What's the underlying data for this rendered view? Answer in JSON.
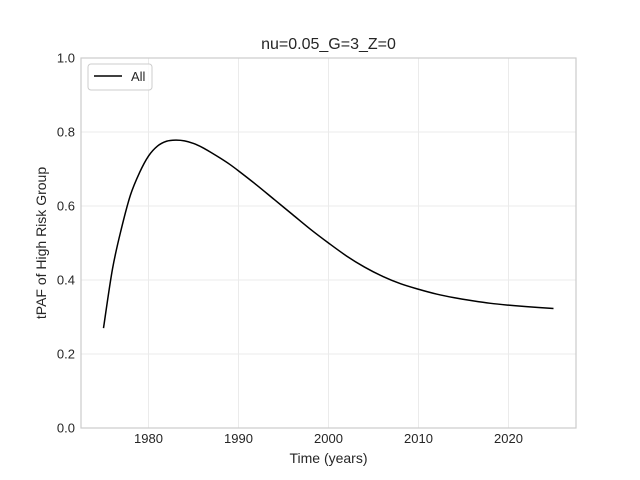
{
  "chart_data": {
    "type": "line",
    "title": "nu=0.05_G=3_Z=0",
    "xlabel": "Time (years)",
    "ylabel": "tPAF of High Risk Group",
    "xlim": [
      1972.5,
      2027.5
    ],
    "ylim": [
      0.0,
      1.0
    ],
    "xticks": [
      1980,
      1990,
      2000,
      2010,
      2020
    ],
    "xtick_labels": [
      "1980",
      "1990",
      "2000",
      "2010",
      "2020"
    ],
    "yticks": [
      0.0,
      0.2,
      0.4,
      0.6,
      0.8,
      1.0
    ],
    "ytick_labels": [
      "0.0",
      "0.2",
      "0.4",
      "0.6",
      "0.8",
      "1.0"
    ],
    "grid": true,
    "legend_position": "top-left",
    "series": [
      {
        "name": "All",
        "color": "#000000",
        "x": [
          1975,
          1976,
          1977,
          1978,
          1979,
          1980,
          1981,
          1982,
          1983,
          1984,
          1985,
          1986,
          1987,
          1988,
          1989,
          1990,
          1992,
          1994,
          1996,
          1998,
          2000,
          2002,
          2004,
          2006,
          2008,
          2010,
          2012,
          2014,
          2016,
          2018,
          2020,
          2022,
          2025
        ],
        "y": [
          0.27,
          0.43,
          0.54,
          0.63,
          0.69,
          0.735,
          0.762,
          0.775,
          0.778,
          0.776,
          0.769,
          0.758,
          0.744,
          0.729,
          0.713,
          0.695,
          0.657,
          0.617,
          0.577,
          0.537,
          0.5,
          0.465,
          0.435,
          0.41,
          0.39,
          0.375,
          0.362,
          0.352,
          0.344,
          0.337,
          0.332,
          0.328,
          0.323
        ]
      }
    ]
  }
}
